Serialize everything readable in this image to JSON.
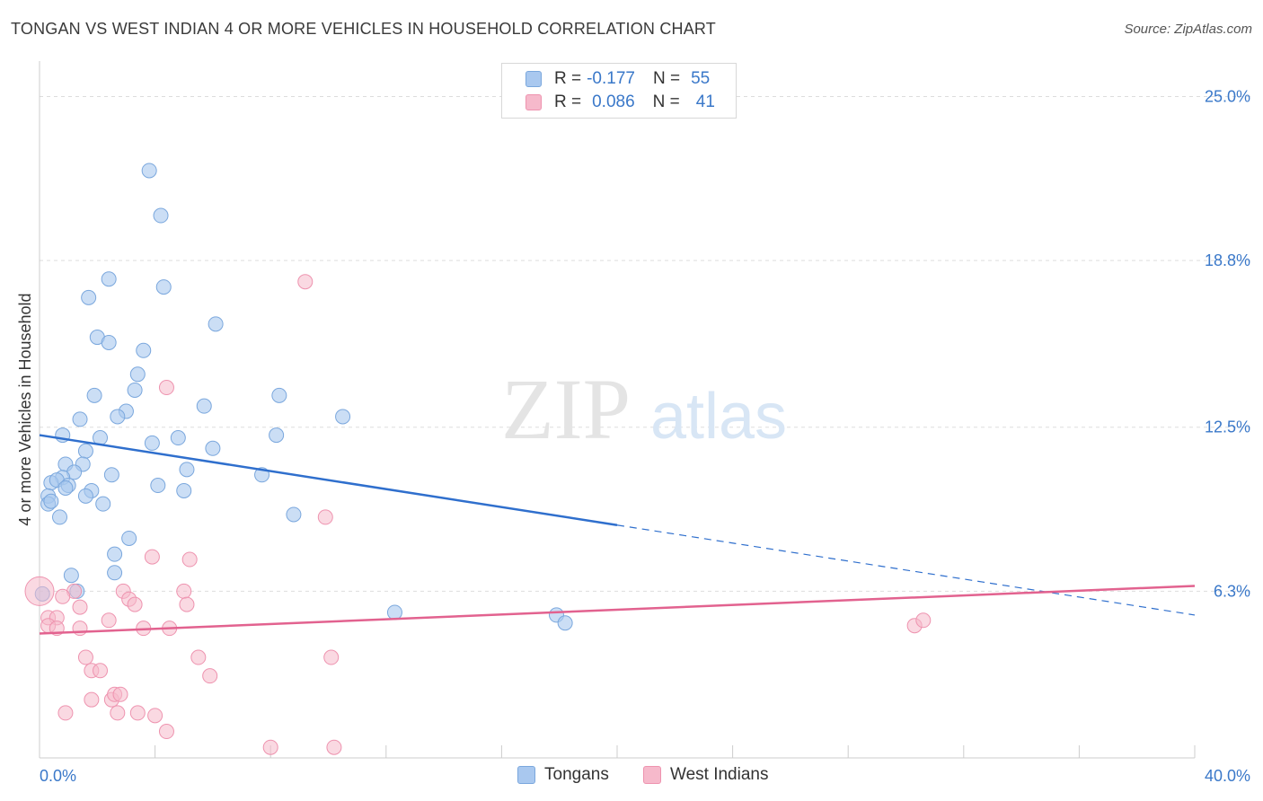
{
  "header": {
    "title": "TONGAN VS WEST INDIAN 4 OR MORE VEHICLES IN HOUSEHOLD CORRELATION CHART",
    "source": "Source: ZipAtlas.com"
  },
  "watermark": {
    "zip": "ZIP",
    "atlas": "atlas"
  },
  "legend": {
    "rows": [
      {
        "r_label": "R =",
        "r_value": "-0.177",
        "n_label": "N =",
        "n_value": "55",
        "color": "#a9c8ef"
      },
      {
        "r_label": "R =",
        "r_value": "0.086",
        "n_label": "N =",
        "n_value": "41",
        "color": "#f6b9cb"
      }
    ]
  },
  "bottom_legend": {
    "series_a": "Tongans",
    "series_b": "West Indians"
  },
  "colors": {
    "blue_fill": "#a9c8ef",
    "blue_stroke": "#7aa7dd",
    "blue_line": "#2f6fcd",
    "pink_fill": "#f6b9cb",
    "pink_stroke": "#ee93af",
    "pink_line": "#e2628f",
    "axis_text": "#3a78c9",
    "grid": "#dddddd"
  },
  "chart_data": {
    "type": "scatter",
    "title": "TONGAN VS WEST INDIAN 4 OR MORE VEHICLES IN HOUSEHOLD CORRELATION CHART",
    "xlabel": "",
    "ylabel": "4 or more Vehicles in Household",
    "xlim": [
      0,
      40
    ],
    "ylim": [
      0,
      26
    ],
    "x_tick_labels": [
      "0.0%",
      "40.0%"
    ],
    "y_ticks": [
      6.3,
      12.5,
      18.8,
      25.0
    ],
    "y_tick_labels": [
      "6.3%",
      "12.5%",
      "18.8%",
      "25.0%"
    ],
    "grid": true,
    "series": [
      {
        "name": "Tongans",
        "r": -0.177,
        "n": 55,
        "points": [
          [
            3.8,
            22.2
          ],
          [
            4.2,
            20.5
          ],
          [
            2.4,
            18.1
          ],
          [
            4.3,
            17.8
          ],
          [
            1.7,
            17.4
          ],
          [
            6.1,
            16.4
          ],
          [
            2.0,
            15.9
          ],
          [
            2.4,
            15.7
          ],
          [
            3.6,
            15.4
          ],
          [
            3.4,
            14.5
          ],
          [
            3.3,
            13.9
          ],
          [
            1.9,
            13.7
          ],
          [
            8.3,
            13.7
          ],
          [
            5.7,
            13.3
          ],
          [
            3.0,
            13.1
          ],
          [
            2.7,
            12.9
          ],
          [
            1.4,
            12.8
          ],
          [
            10.5,
            12.9
          ],
          [
            0.8,
            12.2
          ],
          [
            2.1,
            12.1
          ],
          [
            4.8,
            12.1
          ],
          [
            8.2,
            12.2
          ],
          [
            3.9,
            11.9
          ],
          [
            6.0,
            11.7
          ],
          [
            1.6,
            11.6
          ],
          [
            0.9,
            11.1
          ],
          [
            1.5,
            11.1
          ],
          [
            1.2,
            10.8
          ],
          [
            5.1,
            10.9
          ],
          [
            2.5,
            10.7
          ],
          [
            7.7,
            10.7
          ],
          [
            0.8,
            10.6
          ],
          [
            0.4,
            10.4
          ],
          [
            0.6,
            10.5
          ],
          [
            1.0,
            10.3
          ],
          [
            4.1,
            10.3
          ],
          [
            0.9,
            10.2
          ],
          [
            1.8,
            10.1
          ],
          [
            5.0,
            10.1
          ],
          [
            0.3,
            9.9
          ],
          [
            1.6,
            9.9
          ],
          [
            2.2,
            9.6
          ],
          [
            0.3,
            9.6
          ],
          [
            0.4,
            9.7
          ],
          [
            0.7,
            9.1
          ],
          [
            8.8,
            9.2
          ],
          [
            3.1,
            8.3
          ],
          [
            2.6,
            7.7
          ],
          [
            1.1,
            6.9
          ],
          [
            2.6,
            7.0
          ],
          [
            1.3,
            6.3
          ],
          [
            0.1,
            6.2
          ],
          [
            12.3,
            5.5
          ],
          [
            17.9,
            5.4
          ],
          [
            18.2,
            5.1
          ]
        ],
        "trend": {
          "x0": 0,
          "y0": 12.2,
          "x_solid_end": 20,
          "x1": 40,
          "y1": 5.4
        }
      },
      {
        "name": "West Indians",
        "r": 0.086,
        "n": 41,
        "points": [
          [
            9.2,
            18.0
          ],
          [
            4.4,
            14.0
          ],
          [
            9.9,
            9.1
          ],
          [
            3.9,
            7.6
          ],
          [
            5.2,
            7.5
          ],
          [
            5.0,
            6.3
          ],
          [
            2.9,
            6.3
          ],
          [
            1.2,
            6.3
          ],
          [
            0.8,
            6.1
          ],
          [
            3.1,
            6.0
          ],
          [
            3.3,
            5.8
          ],
          [
            5.1,
            5.8
          ],
          [
            1.4,
            5.7
          ],
          [
            0.3,
            5.3
          ],
          [
            0.6,
            5.3
          ],
          [
            2.4,
            5.2
          ],
          [
            0.3,
            5.0
          ],
          [
            0.6,
            4.9
          ],
          [
            1.4,
            4.9
          ],
          [
            3.6,
            4.9
          ],
          [
            4.5,
            4.9
          ],
          [
            30.3,
            5.0
          ],
          [
            30.6,
            5.2
          ],
          [
            1.6,
            3.8
          ],
          [
            5.5,
            3.8
          ],
          [
            10.1,
            3.8
          ],
          [
            1.8,
            3.3
          ],
          [
            2.1,
            3.3
          ],
          [
            5.9,
            3.1
          ],
          [
            1.8,
            2.2
          ],
          [
            2.5,
            2.2
          ],
          [
            2.6,
            2.4
          ],
          [
            2.8,
            2.4
          ],
          [
            0.9,
            1.7
          ],
          [
            2.7,
            1.7
          ],
          [
            3.4,
            1.7
          ],
          [
            4.0,
            1.6
          ],
          [
            4.4,
            1.0
          ],
          [
            8.0,
            0.4
          ],
          [
            10.2,
            0.4
          ],
          [
            0.0,
            6.3
          ]
        ],
        "trend": {
          "x0": 0,
          "y0": 4.7,
          "x1": 40,
          "y1": 6.5
        }
      }
    ]
  }
}
